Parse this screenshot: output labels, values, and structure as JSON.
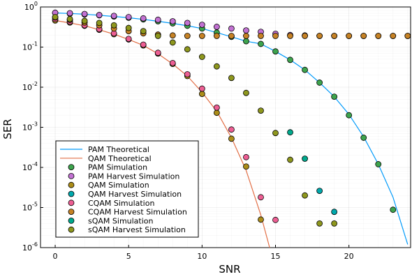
{
  "chart_data": {
    "type": "line",
    "xlabel": "SNR",
    "ylabel": "SER",
    "xlim": [
      -1,
      24.2
    ],
    "ylim": [
      1e-06,
      1
    ],
    "yscale": "log",
    "grid": true,
    "legend_position": "bottom-left",
    "x_ticks": [
      {
        "value": 0,
        "label": "0"
      },
      {
        "value": 5,
        "label": "5"
      },
      {
        "value": 10,
        "label": "10"
      },
      {
        "value": 15,
        "label": "15"
      },
      {
        "value": 20,
        "label": "20"
      }
    ],
    "y_ticks": [
      {
        "value": 1.0,
        "base": "10",
        "exp": "0"
      },
      {
        "value": 0.1,
        "base": "10",
        "exp": "-1"
      },
      {
        "value": 0.01,
        "base": "10",
        "exp": "-2"
      },
      {
        "value": 0.001,
        "base": "10",
        "exp": "-3"
      },
      {
        "value": 0.0001,
        "base": "10",
        "exp": "-4"
      },
      {
        "value": 1e-05,
        "base": "10",
        "exp": "-5"
      },
      {
        "value": 1e-06,
        "base": "10",
        "exp": "-6"
      }
    ],
    "series": [
      {
        "name": "PAM Theoretical",
        "kind": "line",
        "color": "#009AFA",
        "x": [
          0,
          1,
          2,
          3,
          4,
          5,
          6,
          7,
          8,
          9,
          10,
          11,
          12,
          13,
          14,
          15,
          16,
          17,
          18,
          19,
          20,
          21,
          22,
          23,
          24
        ],
        "y": [
          0.71,
          0.69,
          0.66,
          0.62,
          0.58,
          0.54,
          0.49,
          0.44,
          0.39,
          0.34,
          0.29,
          0.23,
          0.18,
          0.14,
          0.12,
          0.078,
          0.048,
          0.027,
          0.013,
          0.0058,
          0.0021,
          0.00058,
          0.00012,
          1.8e-05,
          1.2e-06
        ]
      },
      {
        "name": "QAM Theoretical",
        "kind": "line",
        "color": "#E26F46",
        "x": [
          0,
          1,
          2,
          3,
          4,
          5,
          6,
          7,
          8,
          9,
          10,
          11,
          12,
          13,
          14,
          14.6
        ],
        "y": [
          0.46,
          0.4,
          0.34,
          0.27,
          0.21,
          0.155,
          0.11,
          0.068,
          0.038,
          0.019,
          0.0075,
          0.0025,
          0.00055,
          8.5e-05,
          6.5e-06,
          1e-06
        ]
      },
      {
        "name": "PAM Simulation",
        "kind": "scatter",
        "color": "#3DA44D",
        "x": [
          0,
          1,
          2,
          3,
          4,
          5,
          6,
          7,
          8,
          9,
          10,
          11,
          12,
          13,
          14,
          15,
          16,
          17,
          18,
          19,
          20,
          21,
          22,
          23
        ],
        "y": [
          0.71,
          0.68,
          0.65,
          0.62,
          0.58,
          0.54,
          0.49,
          0.44,
          0.39,
          0.34,
          0.29,
          0.23,
          0.18,
          0.14,
          0.12,
          0.078,
          0.048,
          0.027,
          0.013,
          0.0058,
          0.002,
          0.00055,
          0.00012,
          8.8e-06
        ]
      },
      {
        "name": "PAM Harvest Simulation",
        "kind": "scatter",
        "color": "#C271D2",
        "x": [
          0,
          1,
          2,
          3,
          4,
          5,
          6,
          7,
          8,
          9,
          10,
          11,
          12,
          13,
          14,
          15,
          16,
          17,
          18,
          19,
          20,
          21,
          22,
          23,
          24
        ],
        "y": [
          0.72,
          0.7,
          0.67,
          0.63,
          0.6,
          0.56,
          0.52,
          0.48,
          0.44,
          0.4,
          0.36,
          0.32,
          0.29,
          0.26,
          0.24,
          0.215,
          0.2,
          0.195,
          0.19,
          0.19,
          0.19,
          0.19,
          0.19,
          0.19,
          0.19
        ]
      },
      {
        "name": "QAM Simulation",
        "kind": "scatter",
        "color": "#AC8D18",
        "x": [
          0,
          1,
          2,
          3,
          4,
          5,
          6,
          7,
          8,
          9,
          10,
          11,
          12,
          13,
          14
        ],
        "y": [
          0.46,
          0.41,
          0.34,
          0.27,
          0.21,
          0.155,
          0.11,
          0.069,
          0.038,
          0.019,
          0.0068,
          0.0023,
          0.00052,
          0.000105,
          5e-06
        ]
      },
      {
        "name": "QAM Harvest Simulation",
        "kind": "scatter",
        "color": "#00A9AD",
        "x": [
          18,
          19
        ],
        "y": [
          2.6e-05,
          7.8e-06
        ]
      },
      {
        "name": "CQAM Simulation",
        "kind": "scatter",
        "color": "#ED5E93",
        "x": [
          0,
          1,
          2,
          3,
          4,
          5,
          6,
          7,
          8,
          9,
          10,
          11,
          12,
          13,
          14,
          15
        ],
        "y": [
          0.5,
          0.43,
          0.35,
          0.28,
          0.22,
          0.16,
          0.115,
          0.072,
          0.04,
          0.021,
          0.0092,
          0.0031,
          0.00088,
          0.00018,
          1.8e-05,
          4.9e-06
        ]
      },
      {
        "name": "CQAM Harvest Simulation",
        "kind": "scatter",
        "color": "#C68225",
        "x": [
          0,
          1,
          2,
          3,
          4,
          5,
          6,
          7,
          8,
          9,
          10,
          11,
          12,
          13,
          14,
          15,
          16,
          17,
          18,
          19,
          20,
          21,
          22,
          23,
          24
        ],
        "y": [
          0.55,
          0.48,
          0.41,
          0.35,
          0.29,
          0.25,
          0.22,
          0.205,
          0.195,
          0.19,
          0.19,
          0.19,
          0.19,
          0.19,
          0.19,
          0.19,
          0.19,
          0.19,
          0.19,
          0.19,
          0.19,
          0.19,
          0.19,
          0.19,
          0.19
        ]
      },
      {
        "name": "sQAM Simulation",
        "kind": "scatter",
        "color": "#00A98D",
        "x": [
          16,
          17
        ],
        "y": [
          0.00075,
          0.000165
        ]
      },
      {
        "name": "sQAM Harvest Simulation",
        "kind": "scatter",
        "color": "#8E971D",
        "x": [
          0,
          1,
          2,
          3,
          4,
          5,
          6,
          7,
          8,
          9,
          10,
          11,
          12,
          13,
          14,
          15,
          16,
          17,
          18,
          19
        ],
        "y": [
          0.56,
          0.5,
          0.45,
          0.4,
          0.35,
          0.3,
          0.25,
          0.19,
          0.13,
          0.088,
          0.057,
          0.033,
          0.017,
          0.0072,
          0.0026,
          0.00072,
          0.000155,
          2e-05,
          4e-06,
          4e-06
        ]
      }
    ]
  }
}
